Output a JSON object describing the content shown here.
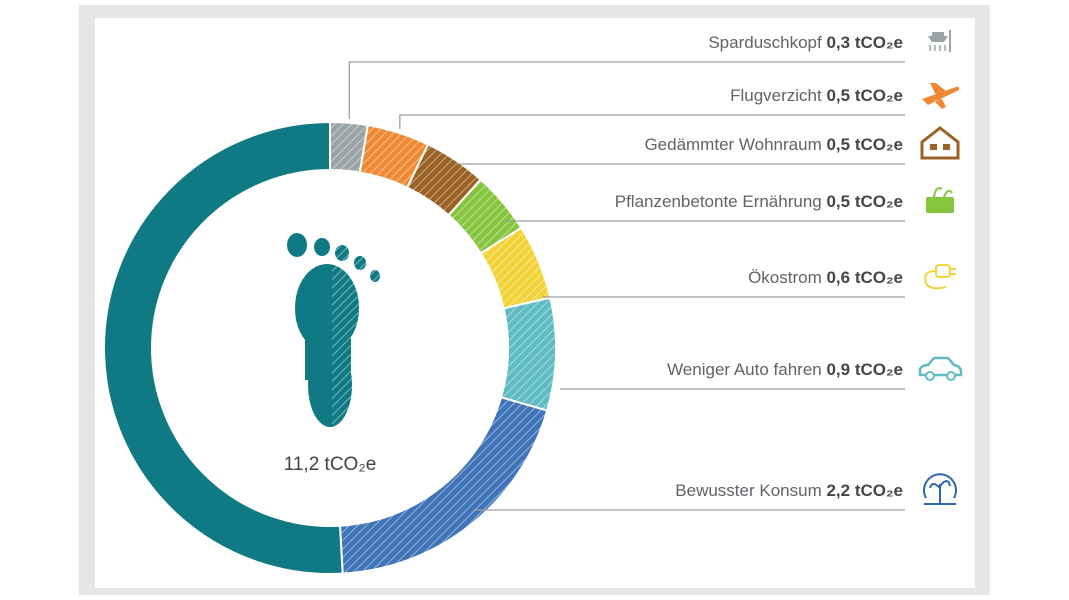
{
  "chart_data": {
    "type": "donut",
    "title": "",
    "unit": "tCO₂e",
    "total_label": "11,2 tCO₂e",
    "remainder_color": "#0f7a84",
    "slices": [
      {
        "label": "Sparduschkopf",
        "value": 0.3,
        "value_label": "0,3 tCO₂e",
        "color": "#9aa3a6",
        "icon": "shower-head-icon",
        "icon_color": "#9aa3a6"
      },
      {
        "label": "Flugverzicht",
        "value": 0.5,
        "value_label": "0,5 tCO₂e",
        "color": "#ee8a33",
        "icon": "airplane-icon",
        "icon_color": "#ee8a33"
      },
      {
        "label": "Gedämmter Wohnraum",
        "value": 0.5,
        "value_label": "0,5 tCO₂e",
        "color": "#9a6224",
        "icon": "house-icon",
        "icon_color": "#9a6224"
      },
      {
        "label": "Pflanzenbetonte Ernährung",
        "value": 0.5,
        "value_label": "0,5 tCO₂e",
        "color": "#86c63f",
        "icon": "vegetables-icon",
        "icon_color": "#86c63f"
      },
      {
        "label": "Ökostrom",
        "value": 0.6,
        "value_label": "0,6 tCO₂e",
        "color": "#f3d438",
        "icon": "power-plug-icon",
        "icon_color": "#f3d438"
      },
      {
        "label": "Weniger Auto fahren",
        "value": 0.9,
        "value_label": "0,9 tCO₂e",
        "color": "#5fbcc2",
        "icon": "car-icon",
        "icon_color": "#5fbcc2"
      },
      {
        "label": "Bewusster Konsum",
        "value": 2.2,
        "value_label": "2,2 tCO₂e",
        "color": "#3f74b8",
        "icon": "globe-plant-icon",
        "icon_color": "#2e66ad"
      }
    ]
  }
}
